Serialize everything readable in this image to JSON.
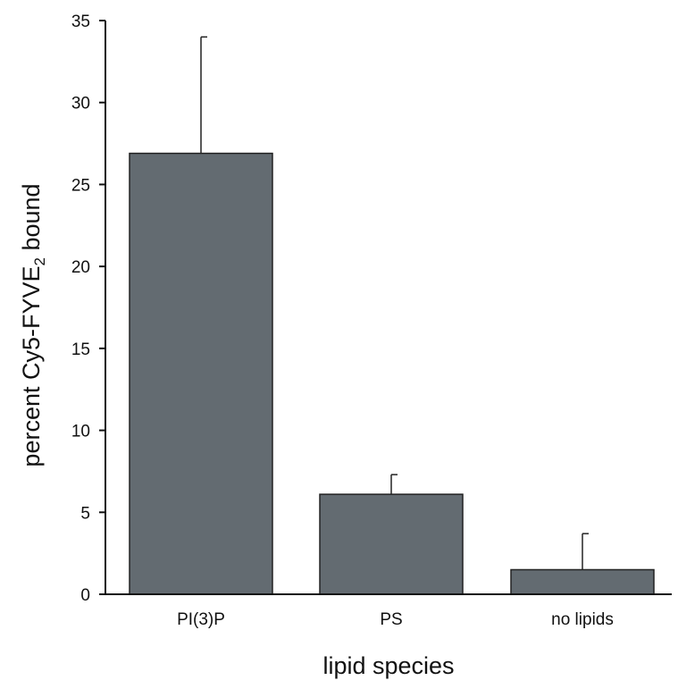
{
  "chart_data": {
    "type": "bar",
    "categories": [
      "PI(3)P",
      "PS",
      "no lipids"
    ],
    "values": [
      26.9,
      6.1,
      1.5
    ],
    "errors": [
      7.1,
      1.2,
      2.2
    ],
    "xlabel": "lipid species",
    "ylabel": {
      "text": "percent Cy5-FYVE",
      "subscript": "2",
      "suffix": " bound"
    },
    "ylim": [
      0,
      35
    ],
    "yticks": [
      0,
      5,
      10,
      15,
      20,
      25,
      30,
      35
    ],
    "grid": false,
    "legend": "none"
  },
  "colors": {
    "bar_fill": "#636b71",
    "bar_stroke": "#222222",
    "axis": "#111111"
  }
}
